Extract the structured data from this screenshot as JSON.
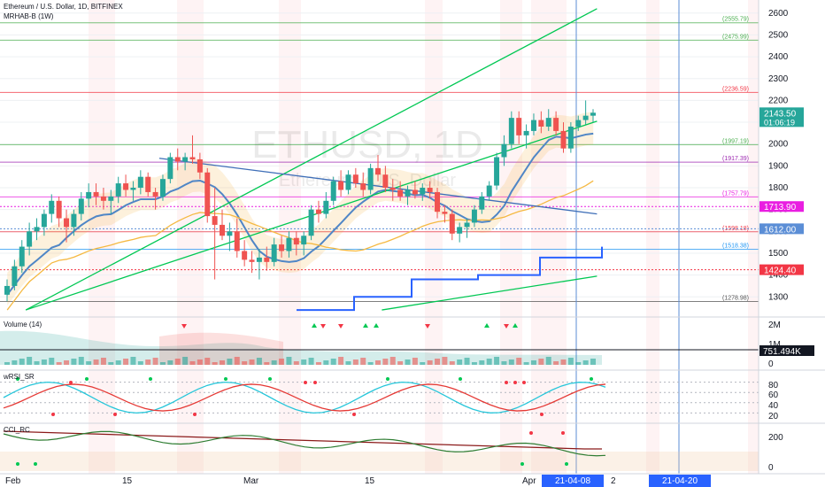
{
  "header": {
    "title": "Ethereum / U.S. Dollar, 1D, BITFINEX",
    "indicator": "MRHAB-B (1W)"
  },
  "watermark": {
    "symbol": "ETHUSD, 1D",
    "name": "Ethereum / U.S. Dollar"
  },
  "panes": {
    "volume": {
      "title": "Volume (14)",
      "ticks": [
        "2M",
        "1M",
        "0"
      ],
      "current_label": "751.494K"
    },
    "wrsi": {
      "title": "wRSI_SR",
      "ticks": [
        "80",
        "60",
        "40",
        "20"
      ]
    },
    "cci": {
      "title": "CCI_RC",
      "ticks": [
        "200",
        "0"
      ]
    }
  },
  "price_axis": {
    "ticks": [
      "2600",
      "2500",
      "2400",
      "2300",
      "2200",
      "2100",
      "2000",
      "1900",
      "1800",
      "1700",
      "1600",
      "1500",
      "1400",
      "1300"
    ],
    "tick_values": [
      2600,
      2500,
      2400,
      2300,
      2200,
      2100,
      2000,
      1900,
      1800,
      1700,
      1600,
      1500,
      1400,
      1300
    ],
    "badges": [
      {
        "id": "last",
        "text": "2143.50",
        "sub": "01:06:19",
        "value": 2143.5,
        "color": "#26a69a"
      },
      {
        "id": "magenta",
        "text": "1713.90",
        "value": 1713.9,
        "color": "#e91ee1"
      },
      {
        "id": "blue",
        "text": "1612.00",
        "value": 1612.0,
        "color": "#5b8ed6"
      },
      {
        "id": "red",
        "text": "1424.40",
        "value": 1424.4,
        "color": "#f23645"
      }
    ]
  },
  "levels": [
    {
      "label": "(2555.79)",
      "value": 2555.79,
      "color": "#4caf50"
    },
    {
      "label": "(2475.99)",
      "value": 2475.99,
      "color": "#4caf50"
    },
    {
      "label": "(2236.59)",
      "value": 2236.59,
      "color": "#f23645"
    },
    {
      "label": "(1997.19)",
      "value": 1997.19,
      "color": "#4caf50"
    },
    {
      "label": "(1917.39)",
      "value": 1917.39,
      "color": "#9c27b0"
    },
    {
      "label": "(1757.79)",
      "value": 1757.79,
      "color": "#e91ee1"
    },
    {
      "label": "(1598.18)",
      "value": 1598.18,
      "color": "#f23645"
    },
    {
      "label": "(1518.38)",
      "value": 1518.38,
      "color": "#2196f3"
    },
    {
      "label": "(1278.98)",
      "value": 1278.98,
      "color": "#555555"
    }
  ],
  "time_axis": {
    "labels": [
      "Feb",
      "15",
      "Mar",
      "15",
      "Apr",
      "2"
    ],
    "highlight_labels": [
      "21-04-08",
      "21-04-20"
    ]
  },
  "chart_data": {
    "type": "candlestick",
    "title": "Ethereum / U.S. Dollar, 1D, BITFINEX",
    "ylim": [
      1220,
      2660
    ],
    "x": [
      "2021-01-31",
      "2021-04-21"
    ],
    "candles": [
      [
        1310,
        1380,
        1280,
        1350
      ],
      [
        1350,
        1470,
        1330,
        1440
      ],
      [
        1440,
        1560,
        1410,
        1530
      ],
      [
        1530,
        1640,
        1490,
        1600
      ],
      [
        1600,
        1660,
        1560,
        1620
      ],
      [
        1620,
        1700,
        1580,
        1680
      ],
      [
        1680,
        1770,
        1640,
        1740
      ],
      [
        1740,
        1760,
        1620,
        1660
      ],
      [
        1660,
        1700,
        1550,
        1620
      ],
      [
        1620,
        1700,
        1580,
        1680
      ],
      [
        1680,
        1780,
        1650,
        1750
      ],
      [
        1750,
        1820,
        1710,
        1780
      ],
      [
        1780,
        1820,
        1720,
        1760
      ],
      [
        1760,
        1800,
        1700,
        1740
      ],
      [
        1740,
        1790,
        1680,
        1760
      ],
      [
        1760,
        1850,
        1730,
        1820
      ],
      [
        1820,
        1860,
        1760,
        1790
      ],
      [
        1790,
        1830,
        1740,
        1800
      ],
      [
        1800,
        1880,
        1770,
        1850
      ],
      [
        1850,
        1870,
        1760,
        1780
      ],
      [
        1780,
        1800,
        1700,
        1760
      ],
      [
        1760,
        1860,
        1740,
        1840
      ],
      [
        1840,
        1960,
        1820,
        1940
      ],
      [
        1940,
        1980,
        1880,
        1920
      ],
      [
        1920,
        1960,
        1880,
        1940
      ],
      [
        1940,
        2040,
        1910,
        1930
      ],
      [
        1930,
        1960,
        1840,
        1870
      ],
      [
        1870,
        1890,
        1640,
        1670
      ],
      [
        1670,
        1800,
        1380,
        1630
      ],
      [
        1630,
        1700,
        1560,
        1580
      ],
      [
        1580,
        1640,
        1510,
        1600
      ],
      [
        1600,
        1660,
        1480,
        1510
      ],
      [
        1510,
        1560,
        1440,
        1470
      ],
      [
        1470,
        1510,
        1410,
        1460
      ],
      [
        1460,
        1520,
        1380,
        1480
      ],
      [
        1480,
        1530,
        1420,
        1460
      ],
      [
        1460,
        1570,
        1440,
        1540
      ],
      [
        1540,
        1580,
        1480,
        1510
      ],
      [
        1510,
        1600,
        1480,
        1570
      ],
      [
        1570,
        1600,
        1490,
        1540
      ],
      [
        1540,
        1600,
        1490,
        1580
      ],
      [
        1580,
        1720,
        1560,
        1700
      ],
      [
        1700,
        1740,
        1640,
        1680
      ],
      [
        1680,
        1780,
        1660,
        1740
      ],
      [
        1740,
        1850,
        1720,
        1830
      ],
      [
        1830,
        1880,
        1760,
        1790
      ],
      [
        1790,
        1880,
        1770,
        1860
      ],
      [
        1860,
        1890,
        1800,
        1820
      ],
      [
        1820,
        1870,
        1760,
        1790
      ],
      [
        1790,
        1910,
        1770,
        1890
      ],
      [
        1890,
        1950,
        1830,
        1860
      ],
      [
        1860,
        1900,
        1780,
        1800
      ],
      [
        1800,
        1840,
        1740,
        1790
      ],
      [
        1790,
        1830,
        1740,
        1760
      ],
      [
        1760,
        1810,
        1720,
        1790
      ],
      [
        1790,
        1830,
        1750,
        1770
      ],
      [
        1770,
        1820,
        1740,
        1800
      ],
      [
        1800,
        1830,
        1750,
        1780
      ],
      [
        1780,
        1800,
        1660,
        1690
      ],
      [
        1690,
        1720,
        1640,
        1680
      ],
      [
        1680,
        1700,
        1560,
        1590
      ],
      [
        1590,
        1640,
        1550,
        1620
      ],
      [
        1620,
        1660,
        1570,
        1640
      ],
      [
        1640,
        1720,
        1620,
        1700
      ],
      [
        1700,
        1780,
        1680,
        1760
      ],
      [
        1760,
        1830,
        1740,
        1810
      ],
      [
        1810,
        1960,
        1790,
        1940
      ],
      [
        1940,
        2040,
        1900,
        2000
      ],
      [
        2000,
        2150,
        1980,
        2120
      ],
      [
        2120,
        2150,
        2000,
        2040
      ],
      [
        2040,
        2090,
        1980,
        2060
      ],
      [
        2060,
        2140,
        2040,
        2110
      ],
      [
        2110,
        2150,
        2050,
        2080
      ],
      [
        2080,
        2160,
        2060,
        2120
      ],
      [
        2120,
        2150,
        2040,
        2060
      ],
      [
        2060,
        2100,
        1960,
        1980
      ],
      [
        1980,
        2100,
        1960,
        2080
      ],
      [
        2080,
        2130,
        2060,
        2110
      ],
      [
        2110,
        2200,
        2090,
        2130
      ],
      [
        2130,
        2160,
        2100,
        2143.5
      ]
    ],
    "trendlines": [
      {
        "color": "#00c853",
        "from": [
          "2021-02-03",
          1240
        ],
        "to": [
          "2021-04-21",
          2620
        ]
      },
      {
        "color": "#00c853",
        "from": [
          "2021-02-03",
          1240
        ],
        "to": [
          "2021-04-21",
          2105
        ]
      },
      {
        "color": "#00c853",
        "from": [
          "2021-03-23",
          1240
        ],
        "to": [
          "2021-04-21",
          1395
        ]
      },
      {
        "color": "#3f6fb8",
        "from": [
          "2021-02-21",
          1935
        ],
        "to": [
          "2021-04-21",
          1680
        ]
      }
    ]
  }
}
